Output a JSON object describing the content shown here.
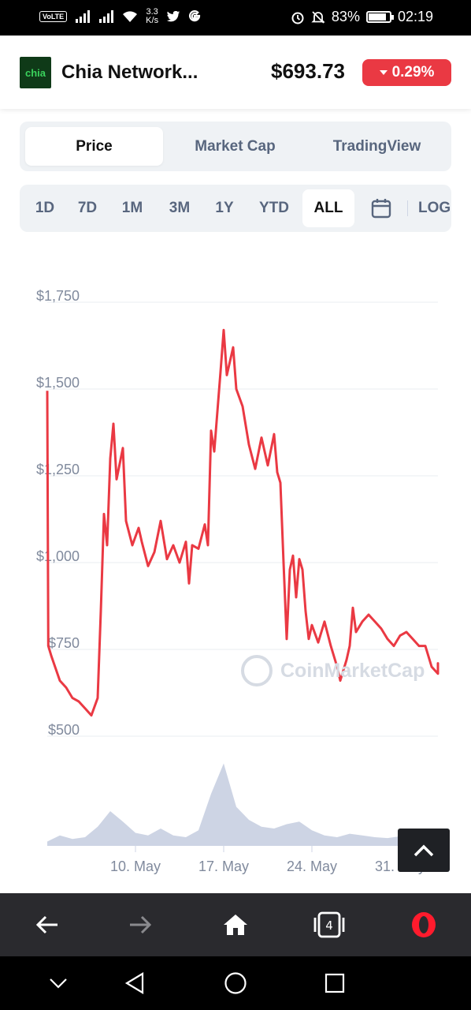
{
  "status_bar": {
    "volte": "VoLTE",
    "net_speed_value": "3.3",
    "net_speed_unit": "K/s",
    "battery_percent": "83%",
    "battery_level": 0.83,
    "time": "02:19",
    "icons": [
      "signal-icon",
      "wifi-icon",
      "twitter-icon",
      "google-icon",
      "alarm-icon",
      "mute-icon",
      "battery-icon"
    ]
  },
  "header": {
    "logo_text": "chia",
    "coin_name": "Chia Network...",
    "price": "$693.73",
    "change": "0.29%",
    "change_color": "#ea3943"
  },
  "chart_tabs": [
    {
      "label": "Price",
      "active": true
    },
    {
      "label": "Market Cap",
      "active": false
    },
    {
      "label": "TradingView",
      "active": false
    }
  ],
  "ranges": [
    {
      "label": "1D",
      "active": false
    },
    {
      "label": "7D",
      "active": false
    },
    {
      "label": "1M",
      "active": false
    },
    {
      "label": "3M",
      "active": false
    },
    {
      "label": "1Y",
      "active": false
    },
    {
      "label": "YTD",
      "active": false
    },
    {
      "label": "ALL",
      "active": true
    }
  ],
  "range_scale_label": "LOG",
  "watermark": "CoinMarketCap",
  "chart_data": {
    "type": "line",
    "line_color": "#ea3943",
    "volume_color": "#cdd4e4",
    "ylim": [
      500,
      1750
    ],
    "yticks": [
      {
        "value": 1750,
        "label": "$1,750"
      },
      {
        "value": 1500,
        "label": "$1,500"
      },
      {
        "value": 1250,
        "label": "$1,250"
      },
      {
        "value": 1000,
        "label": "$1,000"
      },
      {
        "value": 750,
        "label": "$750"
      },
      {
        "value": 500,
        "label": "$500"
      }
    ],
    "x_range": [
      "2021-05-03",
      "2021-06-03"
    ],
    "xticks": [
      {
        "date": "2021-05-10",
        "label": "10. May"
      },
      {
        "date": "2021-05-17",
        "label": "17. May"
      },
      {
        "date": "2021-05-24",
        "label": "24. May"
      },
      {
        "date": "2021-05-31",
        "label": "31. May"
      }
    ],
    "price": [
      [
        "2021-05-03 00:00",
        1495
      ],
      [
        "2021-05-03 02:00",
        760
      ],
      [
        "2021-05-03 08:00",
        730
      ],
      [
        "2021-05-04 00:00",
        660
      ],
      [
        "2021-05-04 12:00",
        640
      ],
      [
        "2021-05-05 00:00",
        610
      ],
      [
        "2021-05-05 12:00",
        600
      ],
      [
        "2021-05-06 00:00",
        580
      ],
      [
        "2021-05-06 12:00",
        560
      ],
      [
        "2021-05-07 00:00",
        610
      ],
      [
        "2021-05-07 06:00",
        860
      ],
      [
        "2021-05-07 12:00",
        1140
      ],
      [
        "2021-05-07 18:00",
        1050
      ],
      [
        "2021-05-08 00:00",
        1300
      ],
      [
        "2021-05-08 06:00",
        1400
      ],
      [
        "2021-05-08 12:00",
        1240
      ],
      [
        "2021-05-09 00:00",
        1330
      ],
      [
        "2021-05-09 06:00",
        1120
      ],
      [
        "2021-05-09 18:00",
        1050
      ],
      [
        "2021-05-10 06:00",
        1100
      ],
      [
        "2021-05-10 12:00",
        1060
      ],
      [
        "2021-05-11 00:00",
        990
      ],
      [
        "2021-05-11 12:00",
        1030
      ],
      [
        "2021-05-12 00:00",
        1120
      ],
      [
        "2021-05-12 12:00",
        1010
      ],
      [
        "2021-05-13 00:00",
        1050
      ],
      [
        "2021-05-13 12:00",
        1000
      ],
      [
        "2021-05-14 00:00",
        1060
      ],
      [
        "2021-05-14 06:00",
        940
      ],
      [
        "2021-05-14 12:00",
        1050
      ],
      [
        "2021-05-15 00:00",
        1040
      ],
      [
        "2021-05-15 12:00",
        1110
      ],
      [
        "2021-05-15 18:00",
        1050
      ],
      [
        "2021-05-16 00:00",
        1380
      ],
      [
        "2021-05-16 06:00",
        1320
      ],
      [
        "2021-05-16 18:00",
        1550
      ],
      [
        "2021-05-17 00:00",
        1670
      ],
      [
        "2021-05-17 06:00",
        1540
      ],
      [
        "2021-05-17 18:00",
        1620
      ],
      [
        "2021-05-18 00:00",
        1500
      ],
      [
        "2021-05-18 12:00",
        1450
      ],
      [
        "2021-05-19 00:00",
        1340
      ],
      [
        "2021-05-19 12:00",
        1270
      ],
      [
        "2021-05-20 00:00",
        1360
      ],
      [
        "2021-05-20 12:00",
        1280
      ],
      [
        "2021-05-21 00:00",
        1370
      ],
      [
        "2021-05-21 06:00",
        1260
      ],
      [
        "2021-05-21 12:00",
        1230
      ],
      [
        "2021-05-21 18:00",
        1000
      ],
      [
        "2021-05-22 00:00",
        780
      ],
      [
        "2021-05-22 06:00",
        980
      ],
      [
        "2021-05-22 12:00",
        1020
      ],
      [
        "2021-05-22 18:00",
        900
      ],
      [
        "2021-05-23 00:00",
        1010
      ],
      [
        "2021-05-23 06:00",
        980
      ],
      [
        "2021-05-23 12:00",
        860
      ],
      [
        "2021-05-23 18:00",
        780
      ],
      [
        "2021-05-24 00:00",
        820
      ],
      [
        "2021-05-24 12:00",
        770
      ],
      [
        "2021-05-25 00:00",
        830
      ],
      [
        "2021-05-25 12:00",
        760
      ],
      [
        "2021-05-26 00:00",
        700
      ],
      [
        "2021-05-26 06:00",
        660
      ],
      [
        "2021-05-26 18:00",
        720
      ],
      [
        "2021-05-27 00:00",
        760
      ],
      [
        "2021-05-27 06:00",
        870
      ],
      [
        "2021-05-27 12:00",
        800
      ],
      [
        "2021-05-28 00:00",
        830
      ],
      [
        "2021-05-28 12:00",
        850
      ],
      [
        "2021-05-29 00:00",
        830
      ],
      [
        "2021-05-29 12:00",
        810
      ],
      [
        "2021-05-30 00:00",
        780
      ],
      [
        "2021-05-30 12:00",
        760
      ],
      [
        "2021-05-31 00:00",
        790
      ],
      [
        "2021-05-31 12:00",
        800
      ],
      [
        "2021-06-01 00:00",
        780
      ],
      [
        "2021-06-01 12:00",
        760
      ],
      [
        "2021-06-02 00:00",
        760
      ],
      [
        "2021-06-02 12:00",
        700
      ],
      [
        "2021-06-03 00:00",
        680
      ],
      [
        "2021-06-03 12:00",
        710
      ],
      [
        "2021-06-04 00:00",
        694
      ]
    ],
    "volume": [
      [
        "2021-05-03",
        0.05
      ],
      [
        "2021-05-04",
        0.12
      ],
      [
        "2021-05-05",
        0.08
      ],
      [
        "2021-05-06",
        0.1
      ],
      [
        "2021-05-07",
        0.22
      ],
      [
        "2021-05-08",
        0.4
      ],
      [
        "2021-05-09",
        0.28
      ],
      [
        "2021-05-10",
        0.15
      ],
      [
        "2021-05-11",
        0.12
      ],
      [
        "2021-05-12",
        0.2
      ],
      [
        "2021-05-13",
        0.12
      ],
      [
        "2021-05-14",
        0.1
      ],
      [
        "2021-05-15",
        0.18
      ],
      [
        "2021-05-16",
        0.6
      ],
      [
        "2021-05-17",
        0.95
      ],
      [
        "2021-05-18",
        0.45
      ],
      [
        "2021-05-19",
        0.3
      ],
      [
        "2021-05-20",
        0.22
      ],
      [
        "2021-05-21",
        0.2
      ],
      [
        "2021-05-22",
        0.25
      ],
      [
        "2021-05-23",
        0.28
      ],
      [
        "2021-05-24",
        0.18
      ],
      [
        "2021-05-25",
        0.12
      ],
      [
        "2021-05-26",
        0.1
      ],
      [
        "2021-05-27",
        0.14
      ],
      [
        "2021-05-28",
        0.12
      ],
      [
        "2021-05-29",
        0.1
      ],
      [
        "2021-05-30",
        0.09
      ],
      [
        "2021-05-31",
        0.11
      ],
      [
        "2021-06-01",
        0.1
      ],
      [
        "2021-06-02",
        0.1
      ],
      [
        "2021-06-03",
        0.12
      ],
      [
        "2021-06-04",
        0.14
      ]
    ]
  }
}
